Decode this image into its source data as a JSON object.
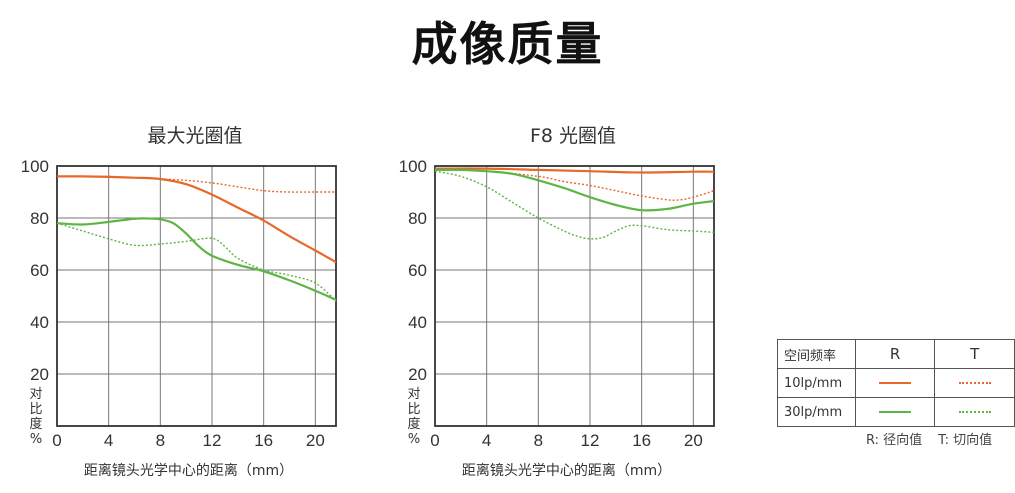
{
  "page_title": "成像质量",
  "colors": {
    "R": "#e8682a",
    "T": "#5cb544",
    "grid": "#777777",
    "frame": "#333333"
  },
  "chart_data": [
    {
      "type": "line",
      "title": "最大光圈值",
      "xlabel": "距离镜头光学中心的距离（mm）",
      "ylabel": "对比度%",
      "xlim": [
        0,
        21.6
      ],
      "ylim": [
        0,
        100
      ],
      "xticks": [
        0,
        4,
        8,
        12,
        16,
        20
      ],
      "yticks": [
        20,
        40,
        60,
        80,
        100
      ],
      "series": [
        {
          "name": "10lp/mm R",
          "color": "R",
          "dashed": false,
          "x": [
            0,
            2,
            4,
            6,
            8,
            10,
            12,
            14,
            16,
            18,
            20,
            21.6
          ],
          "y": [
            96,
            96,
            95.8,
            95.5,
            95,
            93,
            89,
            84,
            79,
            73,
            67.5,
            63
          ]
        },
        {
          "name": "10lp/mm T",
          "color": "R",
          "dashed": true,
          "x": [
            0,
            2,
            4,
            6,
            8,
            10,
            12,
            14,
            16,
            18,
            20,
            21.6
          ],
          "y": [
            96,
            96,
            96,
            95.5,
            95,
            94.5,
            93.5,
            92,
            90.5,
            90,
            90,
            90
          ]
        },
        {
          "name": "30lp/mm R",
          "color": "T",
          "dashed": false,
          "x": [
            0,
            2,
            4,
            6,
            7,
            8,
            9,
            10,
            11,
            12,
            14,
            16,
            18,
            20,
            21.6
          ],
          "y": [
            78,
            77.5,
            78.5,
            79.7,
            79.8,
            79.5,
            78,
            74,
            69,
            65.5,
            62,
            59.5,
            56,
            52,
            48.5
          ]
        },
        {
          "name": "30lp/mm T",
          "color": "T",
          "dashed": true,
          "x": [
            0,
            2,
            4,
            6,
            8,
            10,
            12,
            13,
            14,
            16,
            18,
            20,
            21.6
          ],
          "y": [
            78,
            75,
            72,
            69.5,
            70,
            71,
            72.2,
            69,
            64.5,
            60,
            58,
            55,
            48
          ]
        }
      ]
    },
    {
      "type": "line",
      "title": "F8 光圈值",
      "xlabel": "距离镜头光学中心的距离（mm）",
      "ylabel": "对比度%",
      "xlim": [
        0,
        21.6
      ],
      "ylim": [
        0,
        100
      ],
      "xticks": [
        0,
        4,
        8,
        12,
        16,
        20
      ],
      "yticks": [
        20,
        40,
        60,
        80,
        100
      ],
      "series": [
        {
          "name": "10lp/mm R",
          "color": "R",
          "dashed": false,
          "x": [
            0,
            4,
            8,
            12,
            16,
            20,
            21.6
          ],
          "y": [
            99,
            99,
            98.5,
            98,
            97.5,
            97.8,
            97.8
          ]
        },
        {
          "name": "10lp/mm T",
          "color": "R",
          "dashed": true,
          "x": [
            0,
            4,
            8,
            10,
            12,
            14,
            16,
            18,
            19,
            20,
            21.6
          ],
          "y": [
            98.5,
            98,
            96,
            94,
            92.5,
            90.5,
            88.5,
            87,
            87,
            88,
            90.5
          ]
        },
        {
          "name": "30lp/mm R",
          "color": "T",
          "dashed": false,
          "x": [
            0,
            2,
            4,
            6,
            8,
            10,
            12,
            14,
            16,
            18,
            20,
            21.6
          ],
          "y": [
            98.5,
            98.5,
            98,
            97,
            94.5,
            91.5,
            88,
            85,
            83,
            83.5,
            85.5,
            86.5
          ]
        },
        {
          "name": "30lp/mm T",
          "color": "T",
          "dashed": true,
          "x": [
            0,
            2,
            4,
            6,
            8,
            10,
            11,
            12,
            13,
            14,
            15,
            16,
            18,
            20,
            21.6
          ],
          "y": [
            98,
            96,
            92,
            86,
            80,
            75,
            73,
            72,
            72.5,
            75,
            77,
            77,
            75.5,
            75,
            74.5
          ]
        }
      ]
    }
  ],
  "legend": {
    "header_label": "空间频率",
    "col_r": "R",
    "col_t": "T",
    "row1": "10lp/mm",
    "row2": "30lp/mm",
    "note_r": "R: 径向值",
    "note_t": "T: 切向值"
  }
}
